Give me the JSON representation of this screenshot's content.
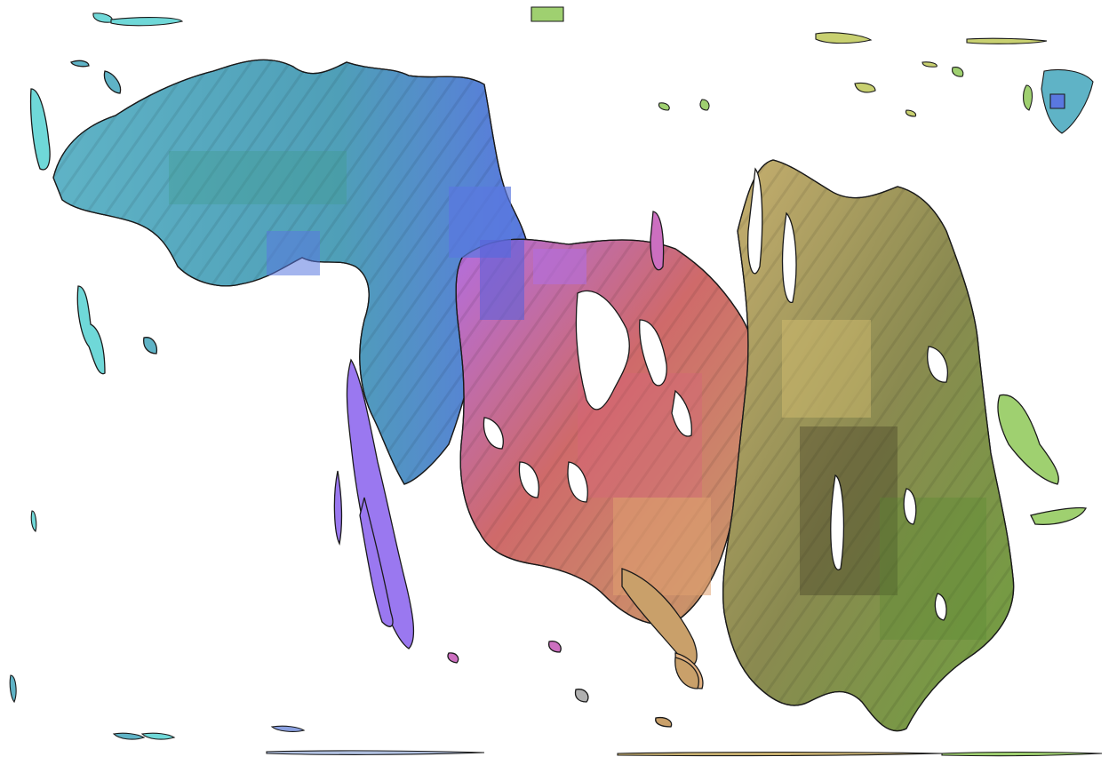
{
  "image": {
    "background": "#ffffff",
    "outline_color": "#1a1a1a",
    "palette": {
      "teal": "#5fb3c6",
      "teal_dark": "#3f8fa6",
      "cyan": "#6fd8d8",
      "blue": "#5a78e0",
      "violet": "#9a78f0",
      "purple": "#b36ee0",
      "magenta": "#cc6fc0",
      "red": "#cf6a6a",
      "salmon": "#e0957a",
      "tan": "#c9a06a",
      "khaki": "#c8b070",
      "olive": "#8a9a48",
      "green": "#6fa040",
      "lime": "#9fd070"
    }
  }
}
